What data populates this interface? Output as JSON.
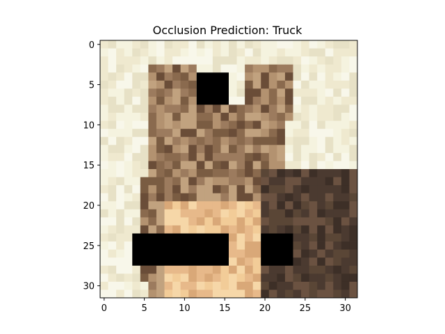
{
  "title": "Occlusion Prediction: Truck",
  "image": {
    "description_name": "cat-image",
    "grid_size": 32,
    "background_palette": [
      "#f5f3df",
      "#efe9cf",
      "#e7e1c6",
      "#f8f7ea"
    ],
    "fur_palette": [
      "#9c7b5e",
      "#8a6a4e",
      "#b39270",
      "#7a5c42",
      "#c1a27f",
      "#6a4d38"
    ],
    "belly_palette": [
      "#e7b98a",
      "#f2cc98",
      "#d9a878",
      "#f6d7a8"
    ],
    "dark_fur_palette": [
      "#4b3a30",
      "#5a4636",
      "#3d2f27",
      "#6b5241"
    ]
  },
  "occlusions": [
    {
      "x_start": 11.5,
      "x_end": 15.5,
      "y_start": 3.5,
      "y_end": 7.5,
      "color": "#000000"
    },
    {
      "x_start": 3.5,
      "x_end": 15.5,
      "y_start": 23.5,
      "y_end": 27.5,
      "color": "#000000"
    },
    {
      "x_start": 19.5,
      "x_end": 23.5,
      "y_start": 23.5,
      "y_end": 27.5,
      "color": "#000000"
    }
  ],
  "axes": {
    "x_ticks": [
      "0",
      "5",
      "10",
      "15",
      "20",
      "25",
      "30"
    ],
    "y_ticks": [
      "0",
      "5",
      "10",
      "15",
      "20",
      "25",
      "30"
    ],
    "x_range": [
      -0.5,
      31.5
    ],
    "y_range": [
      -0.5,
      31.5
    ]
  }
}
